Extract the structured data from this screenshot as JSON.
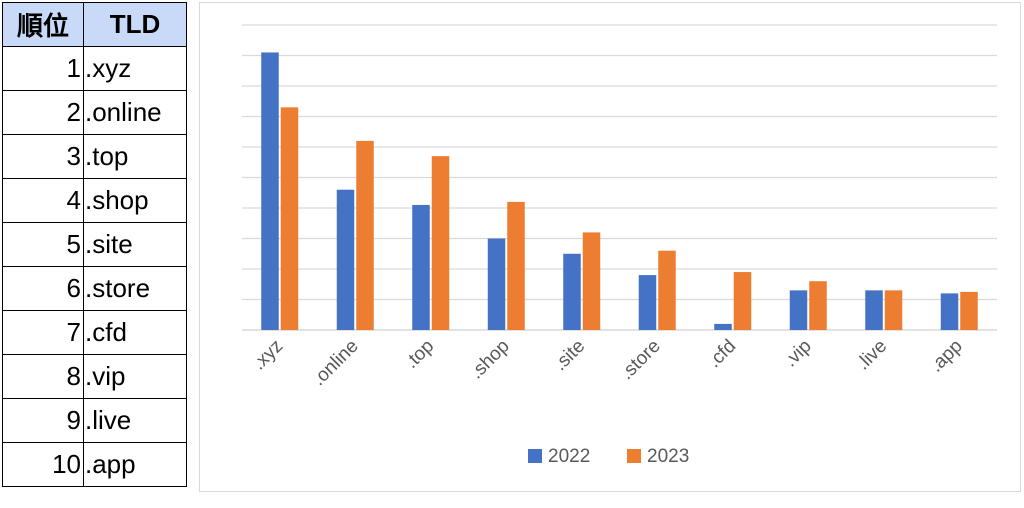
{
  "table": {
    "headers": [
      "順位",
      "TLD"
    ],
    "rows": [
      {
        "rank": "1",
        "tld": ".xyz"
      },
      {
        "rank": "2",
        "tld": ".online"
      },
      {
        "rank": "3",
        "tld": ".top"
      },
      {
        "rank": "4",
        "tld": ".shop"
      },
      {
        "rank": "5",
        "tld": ".site"
      },
      {
        "rank": "6",
        "tld": ".store"
      },
      {
        "rank": "7",
        "tld": ".cfd"
      },
      {
        "rank": "8",
        "tld": ".vip"
      },
      {
        "rank": "9",
        "tld": ".live"
      },
      {
        "rank": "10",
        "tld": ".app"
      }
    ]
  },
  "chart_data": {
    "type": "bar",
    "categories": [
      ".xyz",
      ".online",
      ".top",
      ".shop",
      ".site",
      ".store",
      ".cfd",
      ".vip",
      ".live",
      ".app"
    ],
    "series": [
      {
        "name": "2022",
        "color": "#4472c4",
        "values": [
          9.1,
          4.6,
          4.1,
          3.0,
          2.5,
          1.8,
          0.2,
          1.3,
          1.3,
          1.2
        ]
      },
      {
        "name": "2023",
        "color": "#ed7d31",
        "values": [
          7.3,
          6.2,
          5.7,
          4.2,
          3.2,
          2.6,
          1.9,
          1.6,
          1.3,
          1.25
        ]
      }
    ],
    "ylim": [
      0,
      10
    ],
    "gridlines": 10,
    "grid": true,
    "y_tick_labels_shown": false,
    "legend": "bottom",
    "title": "",
    "xlabel": "",
    "ylabel": ""
  }
}
